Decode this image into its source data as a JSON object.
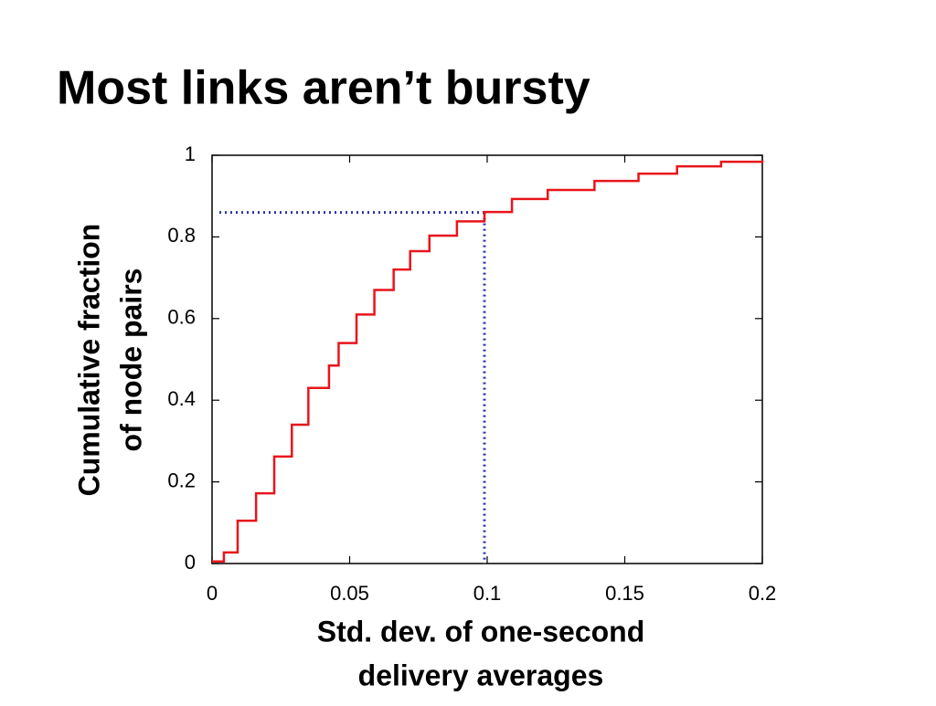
{
  "chart_data": {
    "type": "line",
    "title": "Most links aren’t bursty",
    "x_label": [
      "Std. dev. of one-second",
      "delivery averages"
    ],
    "y_label": [
      "Cumulative fraction",
      "of node pairs"
    ],
    "x": [
      0,
      0.0043,
      0.0093,
      0.016,
      0.0226,
      0.029,
      0.035,
      0.0425,
      0.046,
      0.0525,
      0.059,
      0.066,
      0.072,
      0.079,
      0.089,
      0.099,
      0.109,
      0.122,
      0.139,
      0.155,
      0.169,
      0.185,
      0.2
    ],
    "series": [
      {
        "color": "#e8151b",
        "values": [
          0.005,
          0.027,
          0.105,
          0.172,
          0.262,
          0.34,
          0.43,
          0.485,
          0.54,
          0.61,
          0.67,
          0.72,
          0.765,
          0.803,
          0.838,
          0.861,
          0.893,
          0.915,
          0.937,
          0.955,
          0.973,
          0.984,
          0.987
        ]
      }
    ],
    "reference": {
      "x": 0.099,
      "y": 0.86,
      "color": "#2b35a8"
    },
    "xlim": [
      0,
      0.2
    ],
    "ylim": [
      0,
      1
    ],
    "xticks": [
      0,
      0.05,
      0.1,
      0.15,
      0.2
    ],
    "yticks": [
      0,
      0.2,
      0.4,
      0.6,
      0.8,
      1
    ]
  }
}
